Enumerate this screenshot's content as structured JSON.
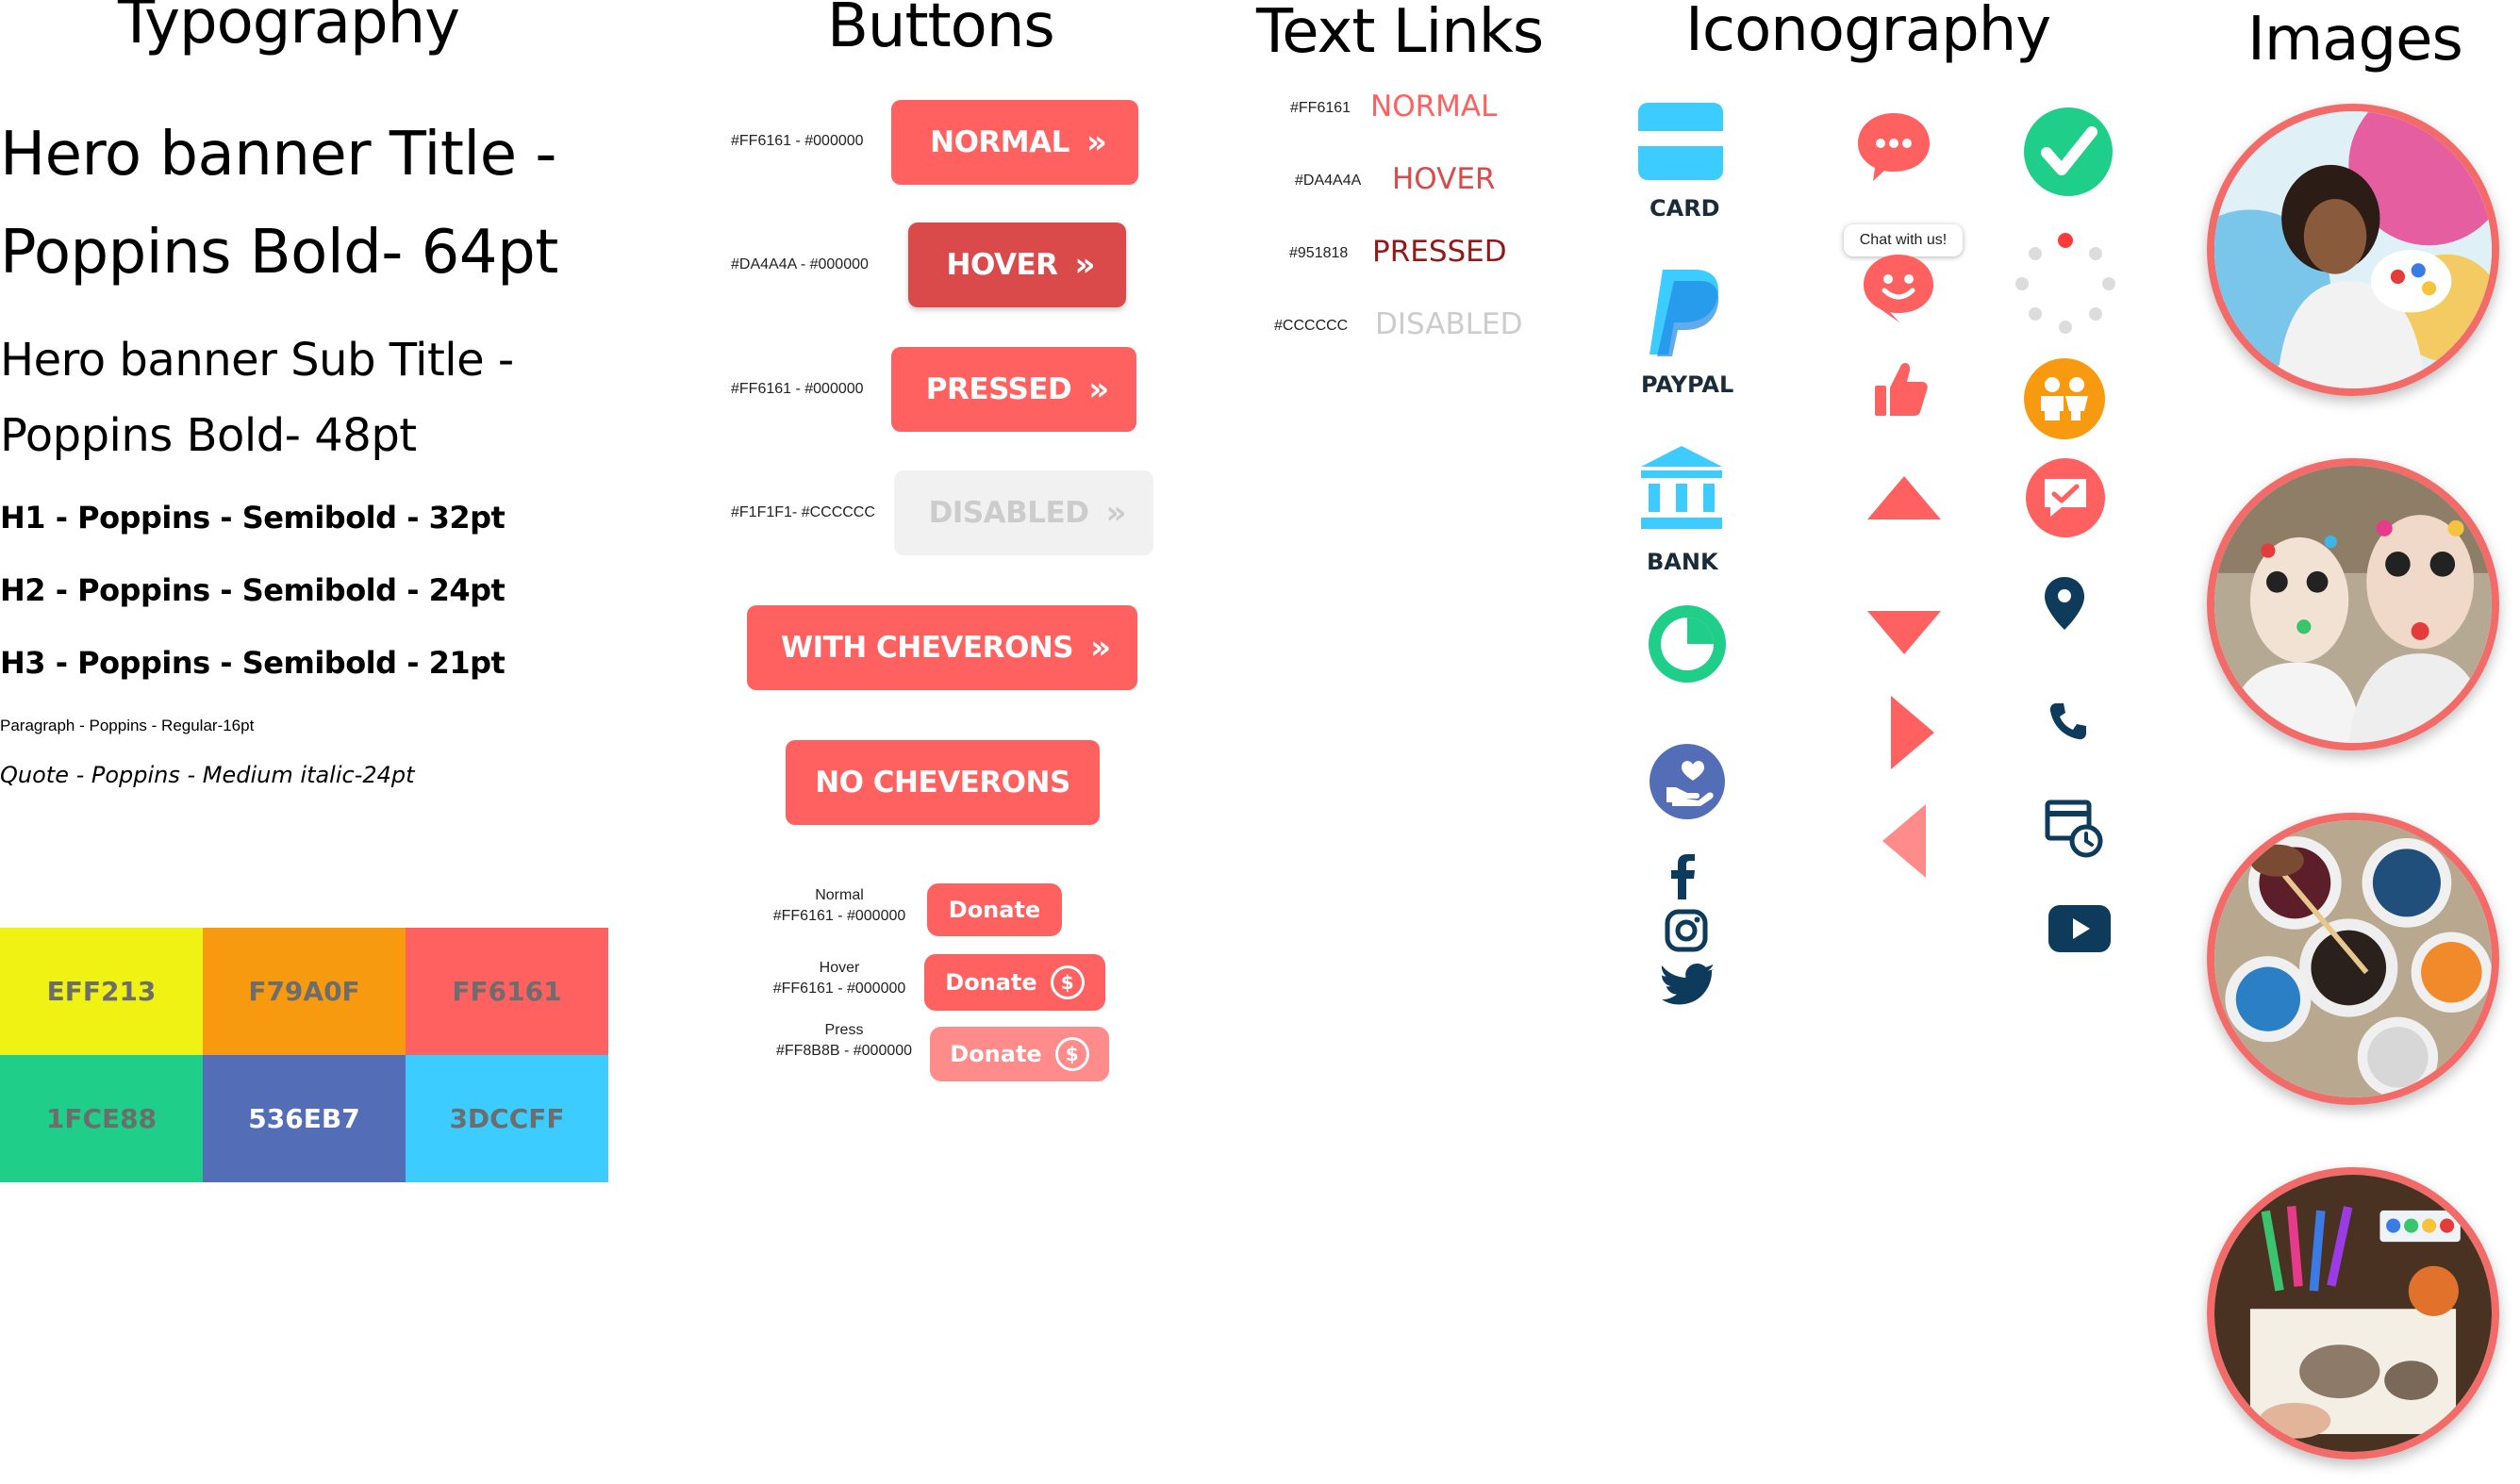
{
  "sections": {
    "typography": "Typography",
    "buttons": "Buttons",
    "text_links": "Text Links",
    "iconography": "Iconography",
    "images": "Images"
  },
  "typography": {
    "hero_title_l1": "Hero banner Title -",
    "hero_title_l2": "Poppins Bold- 64pt",
    "hero_sub_l1": "Hero banner Sub Title -",
    "hero_sub_l2": "Poppins Bold- 48pt",
    "h1": "H1 - Poppins - Semibold - 32pt",
    "h2": "H2 - Poppins - Semibold - 24pt",
    "h3": "H3 - Poppins - Semibold - 21pt",
    "paragraph": "Paragraph - Poppins - Regular-16pt",
    "quote": "Quote - Poppins - Medium italic-24pt"
  },
  "swatches": [
    {
      "label": "EFF213",
      "color": "#EFF213"
    },
    {
      "label": "F79A0F",
      "color": "#F79A0F"
    },
    {
      "label": "FF6161",
      "color": "#FF6161"
    },
    {
      "label": "1FCE88",
      "color": "#1FCE88"
    },
    {
      "label": "536EB7",
      "color": "#536EB7"
    },
    {
      "label": "3DCCFF",
      "color": "#3DCCFF"
    }
  ],
  "buttons": {
    "normal": {
      "code": "#FF6161 - #000000",
      "label": "NORMAL"
    },
    "hover": {
      "code": "#DA4A4A - #000000",
      "label": "HOVER"
    },
    "pressed": {
      "code": "#FF6161 - #000000",
      "label": "PRESSED"
    },
    "disabled": {
      "code": "#F1F1F1- #CCCCCC",
      "label": "DISABLED"
    },
    "with_chevrons": "WITH CHEVERONS",
    "no_chevrons": "NO CHEVERONS",
    "chevron_glyph": "»",
    "donate_normal": {
      "state": "Normal",
      "code": "#FF6161 - #000000",
      "label": "Donate"
    },
    "donate_hover": {
      "state": "Hover",
      "code": "#FF6161 - #000000",
      "label": "Donate"
    },
    "donate_press": {
      "state": "Press",
      "code": "#FF8B8B - #000000",
      "label": "Donate"
    }
  },
  "text_links": [
    {
      "code": "#FF6161",
      "label": "NORMAL",
      "color": "#FF6161"
    },
    {
      "code": "#DA4A4A",
      "label": "HOVER",
      "color": "#DA4A4A"
    },
    {
      "code": "#951818",
      "label": "PRESSED",
      "color": "#951818"
    },
    {
      "code": "#CCCCCC",
      "label": "DISABLED",
      "color": "#CCCCCC"
    }
  ],
  "icons": {
    "card": "CARD",
    "paypal": "PAYPAL",
    "bank": "BANK",
    "chat_bubble": "Chat with us!",
    "names": [
      "card-icon",
      "paypal-icon",
      "bank-icon",
      "pie-chart-icon",
      "heart-hand-icon",
      "facebook-icon",
      "instagram-icon",
      "twitter-icon",
      "chat-icon",
      "chat-face-icon",
      "thumbs-up-icon",
      "arrow-up-icon",
      "arrow-down-icon",
      "arrow-right-icon",
      "arrow-left-icon",
      "check-icon",
      "loading-icon",
      "kids-icon",
      "message-check-icon",
      "location-pin-icon",
      "phone-icon",
      "calendar-clock-icon",
      "youtube-icon"
    ]
  },
  "colors": {
    "accent": "#FF6161",
    "hover": "#DA4A4A",
    "icon_dark": "#0E3A5B",
    "light_blue": "#3DCCFF",
    "green": "#1FCE88"
  }
}
